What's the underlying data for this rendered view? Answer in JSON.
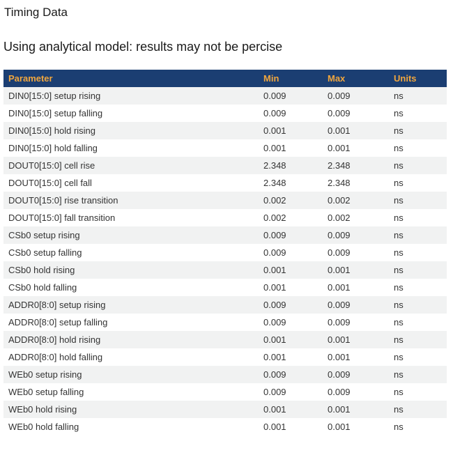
{
  "page": {
    "title": "Timing Data",
    "subtitle": "Using analytical model: results may not be percise"
  },
  "table": {
    "columns": [
      "Parameter",
      "Min",
      "Max",
      "Units"
    ],
    "rows": [
      {
        "parameter": "DIN0[15:0] setup rising",
        "min": "0.009",
        "max": "0.009",
        "units": "ns"
      },
      {
        "parameter": "DIN0[15:0] setup falling",
        "min": "0.009",
        "max": "0.009",
        "units": "ns"
      },
      {
        "parameter": "DIN0[15:0] hold rising",
        "min": "0.001",
        "max": "0.001",
        "units": "ns"
      },
      {
        "parameter": "DIN0[15:0] hold falling",
        "min": "0.001",
        "max": "0.001",
        "units": "ns"
      },
      {
        "parameter": "DOUT0[15:0] cell rise",
        "min": "2.348",
        "max": "2.348",
        "units": "ns"
      },
      {
        "parameter": "DOUT0[15:0] cell fall",
        "min": "2.348",
        "max": "2.348",
        "units": "ns"
      },
      {
        "parameter": "DOUT0[15:0] rise transition",
        "min": "0.002",
        "max": "0.002",
        "units": "ns"
      },
      {
        "parameter": "DOUT0[15:0] fall transition",
        "min": "0.002",
        "max": "0.002",
        "units": "ns"
      },
      {
        "parameter": "CSb0 setup rising",
        "min": "0.009",
        "max": "0.009",
        "units": "ns"
      },
      {
        "parameter": "CSb0 setup falling",
        "min": "0.009",
        "max": "0.009",
        "units": "ns"
      },
      {
        "parameter": "CSb0 hold rising",
        "min": "0.001",
        "max": "0.001",
        "units": "ns"
      },
      {
        "parameter": "CSb0 hold falling",
        "min": "0.001",
        "max": "0.001",
        "units": "ns"
      },
      {
        "parameter": "ADDR0[8:0] setup rising",
        "min": "0.009",
        "max": "0.009",
        "units": "ns"
      },
      {
        "parameter": "ADDR0[8:0] setup falling",
        "min": "0.009",
        "max": "0.009",
        "units": "ns"
      },
      {
        "parameter": "ADDR0[8:0] hold rising",
        "min": "0.001",
        "max": "0.001",
        "units": "ns"
      },
      {
        "parameter": "ADDR0[8:0] hold falling",
        "min": "0.001",
        "max": "0.001",
        "units": "ns"
      },
      {
        "parameter": "WEb0 setup rising",
        "min": "0.009",
        "max": "0.009",
        "units": "ns"
      },
      {
        "parameter": "WEb0 setup falling",
        "min": "0.009",
        "max": "0.009",
        "units": "ns"
      },
      {
        "parameter": "WEb0 hold rising",
        "min": "0.001",
        "max": "0.001",
        "units": "ns"
      },
      {
        "parameter": "WEb0 hold falling",
        "min": "0.001",
        "max": "0.001",
        "units": "ns"
      }
    ]
  },
  "colors": {
    "header_bg": "#1b3e72",
    "header_text": "#f0a63e",
    "row_stripe": "#f1f2f2",
    "row_text": "#333333"
  }
}
